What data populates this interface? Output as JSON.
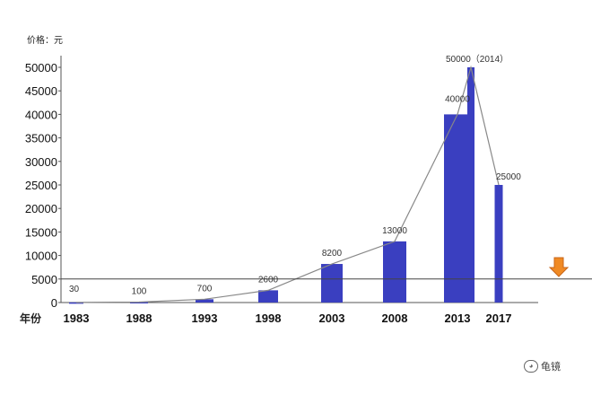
{
  "chart_data": {
    "type": "bar",
    "ylabel": "价格：元",
    "xlabel": "年份",
    "categories": [
      "1983",
      "1988",
      "1993",
      "1998",
      "2003",
      "2008",
      "2013",
      "2017"
    ],
    "values": [
      30,
      100,
      700,
      2600,
      8200,
      13000,
      40000,
      25000
    ],
    "data_labels": [
      "30",
      "100",
      "700",
      "2600",
      "8200",
      "13000",
      "40000",
      "25000"
    ],
    "yticks": [
      "0",
      "5000",
      "10000",
      "15000",
      "20000",
      "25000",
      "30000",
      "35000",
      "40000",
      "45000",
      "50000"
    ],
    "ylim": [
      0,
      50000
    ],
    "extra_bar": {
      "category": "2014",
      "value": 50000,
      "label": "50000（2014）"
    },
    "line_values": [
      30,
      100,
      700,
      2600,
      8200,
      13000,
      40000,
      50000,
      25000
    ],
    "reference_line": 5000,
    "bar_color": "#3a3fc0",
    "line_color": "#888888",
    "marker_color": "#f08a24",
    "grid": false
  },
  "watermark": {
    "icon": "wechat-icon",
    "text": "龟镜"
  }
}
